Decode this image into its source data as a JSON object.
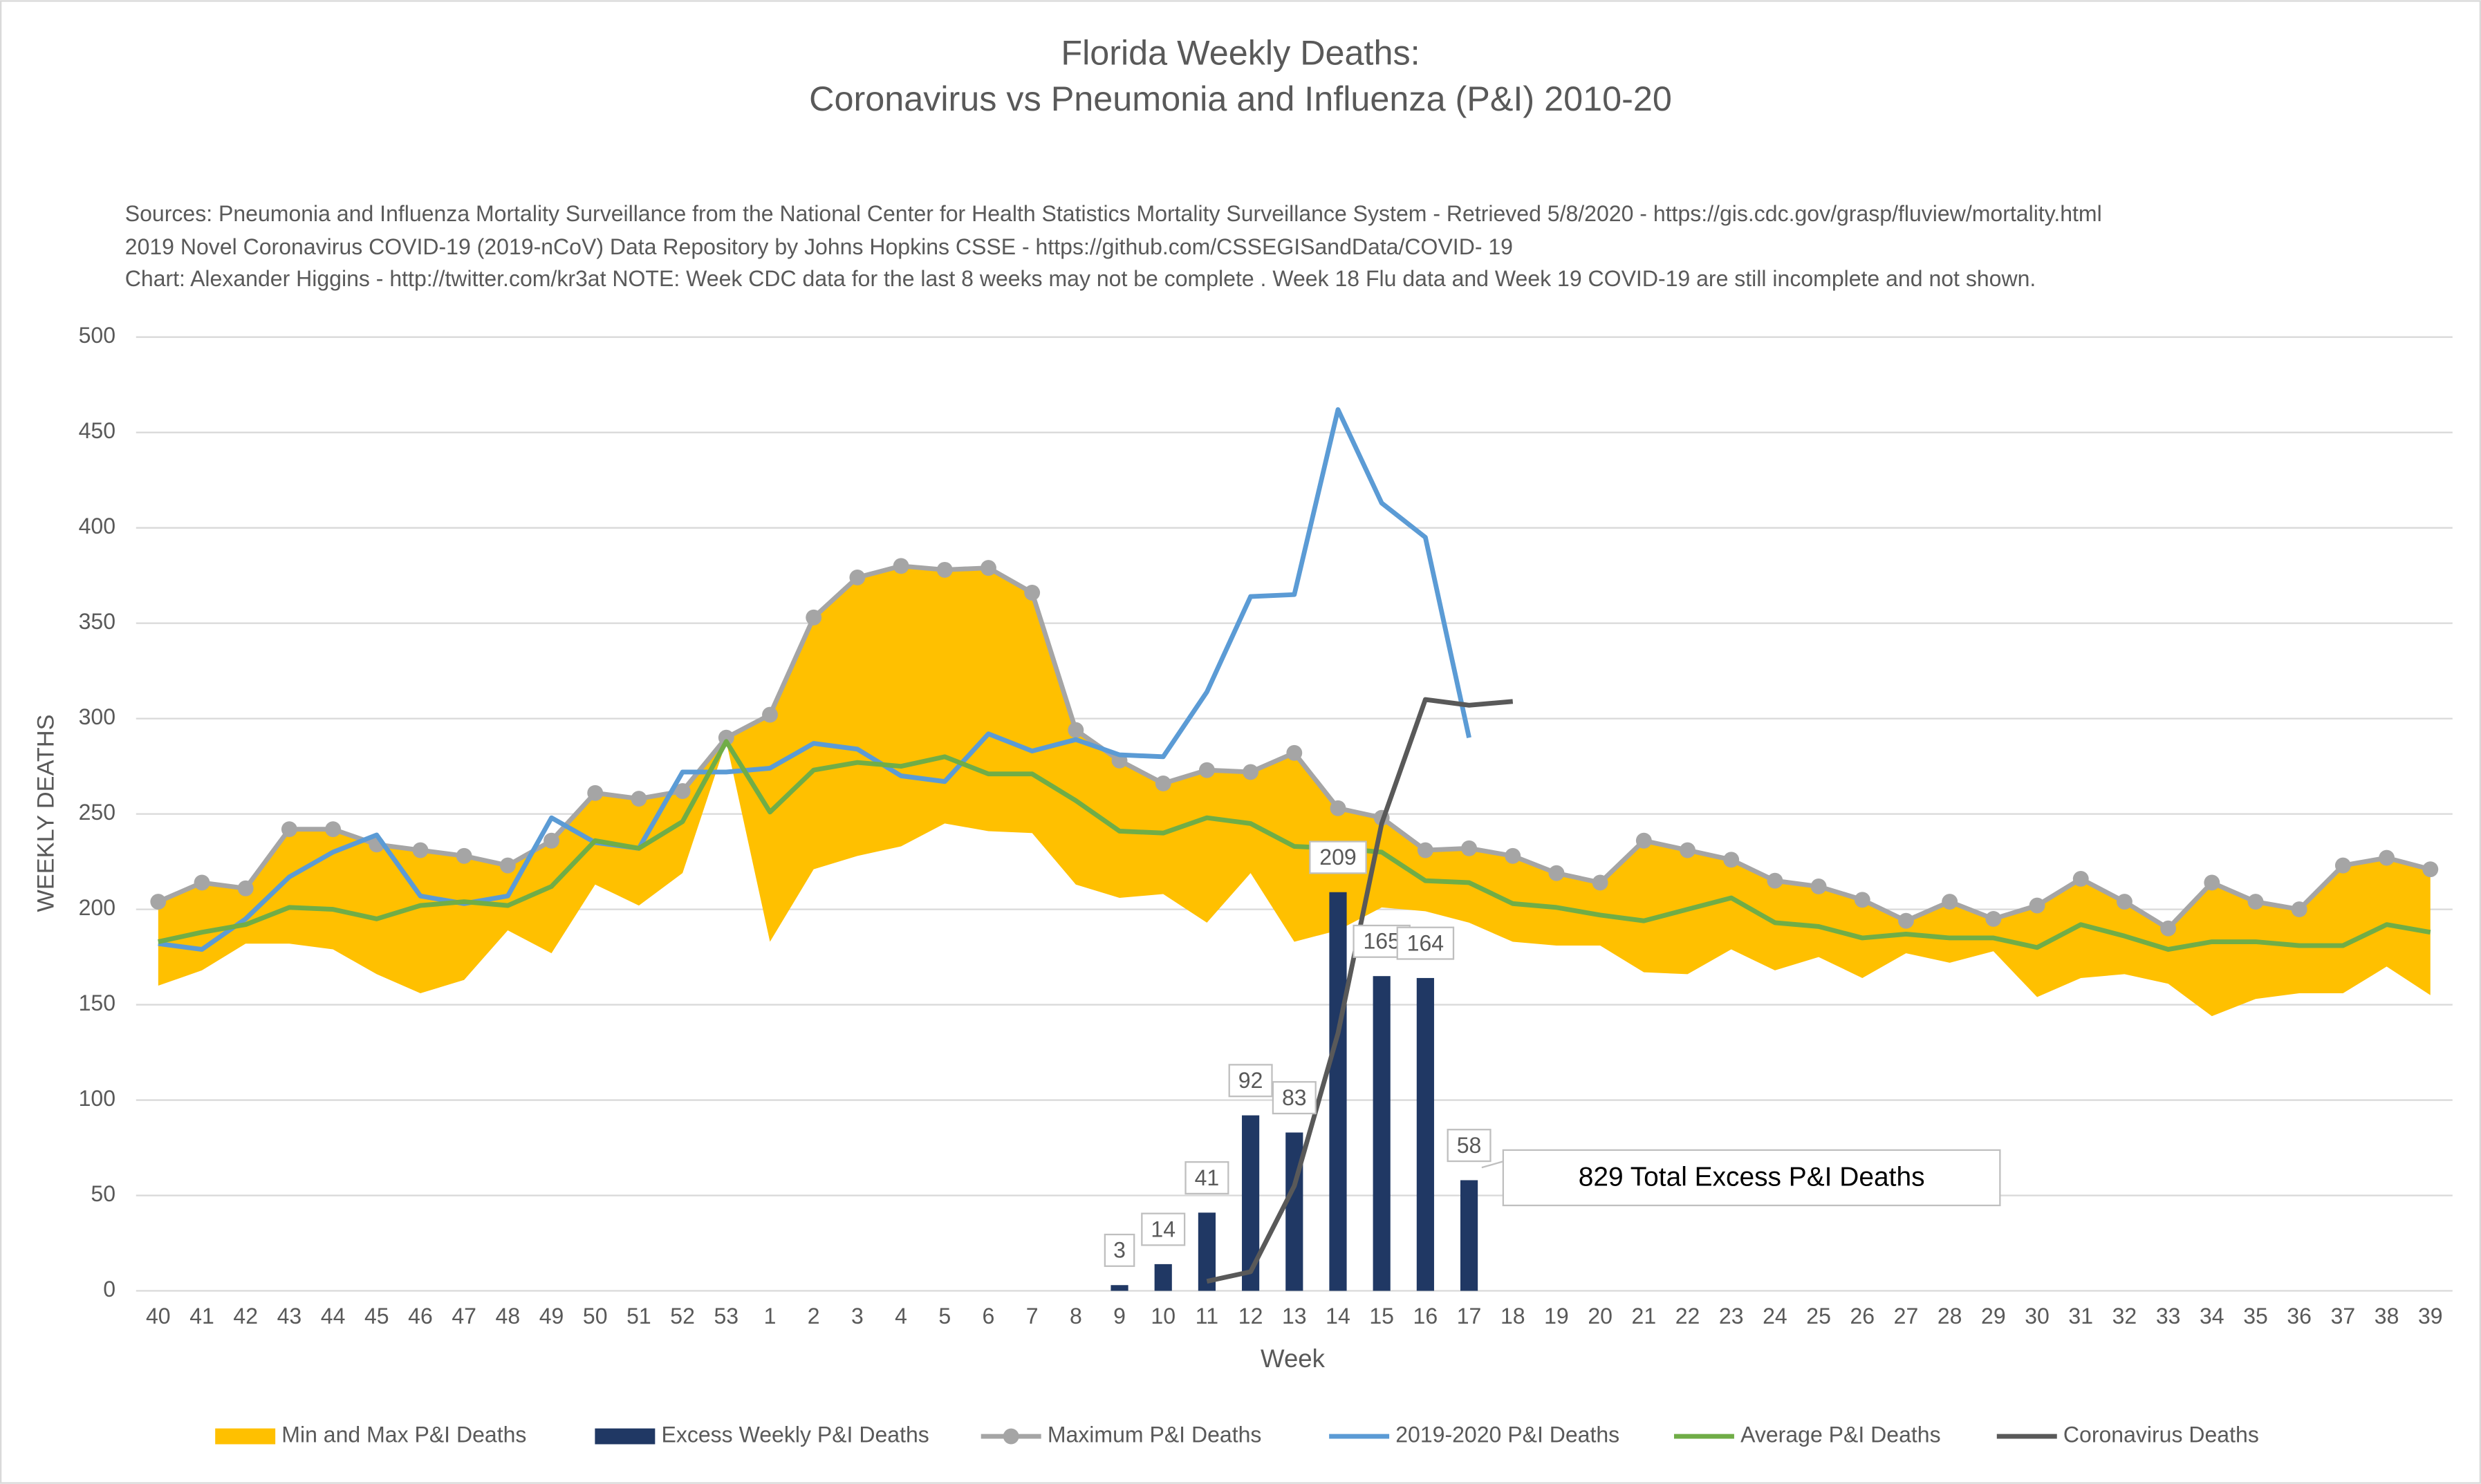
{
  "chart_data": {
    "type": "combo",
    "title": [
      "Florida Weekly Deaths:",
      "Coronavirus vs Pneumonia and Influenza (P&I) 2010-20"
    ],
    "subtitle": [
      "Sources: Pneumonia and Influenza Mortality Surveillance from the National Center for Health Statistics Mortality Surveillance System - Retrieved 5/8/2020 - https://gis.cdc.gov/grasp/fluview/mortality.html",
      "2019 Novel Coronavirus COVID-19 (2019-nCoV) Data Repository by Johns Hopkins CSSE - https://github.com/CSSEGISandData/COVID- 19",
      "Chart: Alexander Higgins - http://twitter.com/kr3at   NOTE: Week CDC data for the last 8 weeks may not be complete . Week 18 Flu data and Week 19 COVID-19 are still incomplete and not shown."
    ],
    "x_label": "Week",
    "y_label": "WEEKLY DEATHS",
    "annotation": "829 Total Excess P&I Deaths",
    "categories": [
      "40",
      "41",
      "42",
      "43",
      "44",
      "45",
      "46",
      "47",
      "48",
      "49",
      "50",
      "51",
      "52",
      "53",
      "1",
      "2",
      "3",
      "4",
      "5",
      "6",
      "7",
      "8",
      "9",
      "10",
      "11",
      "12",
      "13",
      "14",
      "15",
      "16",
      "17",
      "18",
      "19",
      "20",
      "21",
      "22",
      "23",
      "24",
      "25",
      "26",
      "27",
      "28",
      "29",
      "30",
      "31",
      "32",
      "33",
      "34",
      "35",
      "36",
      "37",
      "38",
      "39"
    ],
    "ylim": [
      0,
      500
    ],
    "yticks": [
      0,
      50,
      100,
      150,
      200,
      250,
      300,
      350,
      400,
      450,
      500
    ],
    "grid": true,
    "legend": "bottom",
    "series": [
      {
        "name": "Min and Max P&I Deaths",
        "type": "area",
        "color": "#ffc000",
        "low": [
          160,
          168,
          182,
          182,
          179,
          166,
          156,
          163,
          189,
          177,
          213,
          202,
          219,
          288,
          183,
          221,
          228,
          233,
          245,
          241,
          240,
          213,
          206,
          208,
          193,
          219,
          183,
          189,
          201,
          199,
          193,
          183,
          181,
          181,
          167,
          166,
          179,
          168,
          175,
          164,
          177,
          172,
          178,
          154,
          164,
          166,
          161,
          144,
          153,
          156,
          156,
          170,
          155
        ],
        "high": [
          204,
          214,
          211,
          242,
          242,
          234,
          231,
          228,
          223,
          236,
          261,
          258,
          262,
          290,
          302,
          353,
          374,
          380,
          378,
          379,
          366,
          294,
          278,
          266,
          273,
          272,
          282,
          253,
          248,
          231,
          232,
          228,
          219,
          214,
          236,
          231,
          226,
          215,
          212,
          205,
          194,
          204,
          195,
          202,
          216,
          204,
          190,
          214,
          204,
          200,
          223,
          227,
          221
        ]
      },
      {
        "name": "Excess Weekly P&I Deaths",
        "type": "bar",
        "color": "#203864",
        "values": [
          null,
          null,
          null,
          null,
          null,
          null,
          null,
          null,
          null,
          null,
          null,
          null,
          null,
          null,
          null,
          null,
          null,
          null,
          null,
          null,
          null,
          null,
          3,
          14,
          41,
          92,
          83,
          209,
          165,
          164,
          58,
          null,
          null,
          null,
          null,
          null,
          null,
          null,
          null,
          null,
          null,
          null,
          null,
          null,
          null,
          null,
          null,
          null,
          null,
          null,
          null,
          null,
          null
        ]
      },
      {
        "name": "Maximum P&I Deaths",
        "type": "line",
        "markers": true,
        "color": "#a5a5a5",
        "values": [
          204,
          214,
          211,
          242,
          242,
          234,
          231,
          228,
          223,
          236,
          261,
          258,
          262,
          290,
          302,
          353,
          374,
          380,
          378,
          379,
          366,
          294,
          278,
          266,
          273,
          272,
          282,
          253,
          248,
          231,
          232,
          228,
          219,
          214,
          236,
          231,
          226,
          215,
          212,
          205,
          194,
          204,
          195,
          202,
          216,
          204,
          190,
          214,
          204,
          200,
          223,
          227,
          221
        ]
      },
      {
        "name": "2019-2020 P&I Deaths",
        "type": "line",
        "color": "#5b9bd5",
        "values": [
          182,
          179,
          195,
          217,
          230,
          239,
          207,
          203,
          207,
          248,
          235,
          232,
          272,
          272,
          274,
          287,
          284,
          270,
          267,
          292,
          283,
          289,
          281,
          280,
          314,
          364,
          365,
          462,
          413,
          395,
          290,
          null,
          null,
          null,
          null,
          null,
          null,
          null,
          null,
          null,
          null,
          null,
          null,
          null,
          null,
          null,
          null,
          null,
          null,
          null,
          null,
          null,
          null
        ]
      },
      {
        "name": "Average P&I Deaths",
        "type": "line",
        "color": "#70ad47",
        "values": [
          183,
          188,
          192,
          201,
          200,
          195,
          202,
          204,
          202,
          212,
          236,
          232,
          246,
          288,
          251,
          273,
          277,
          275,
          280,
          271,
          271,
          257,
          241,
          240,
          248,
          245,
          233,
          232,
          230,
          215,
          214,
          203,
          201,
          197,
          194,
          200,
          206,
          193,
          191,
          185,
          187,
          185,
          185,
          180,
          192,
          186,
          179,
          183,
          183,
          181,
          181,
          192,
          188
        ]
      },
      {
        "name": "Coronavirus Deaths",
        "type": "line",
        "color": "#595959",
        "values": [
          null,
          null,
          null,
          null,
          null,
          null,
          null,
          null,
          null,
          null,
          null,
          null,
          null,
          null,
          null,
          null,
          null,
          null,
          null,
          null,
          null,
          null,
          null,
          null,
          5,
          10,
          55,
          135,
          245,
          310,
          307,
          309,
          null,
          null,
          null,
          null,
          null,
          null,
          null,
          null,
          null,
          null,
          null,
          null,
          null,
          null,
          null,
          null,
          null,
          null,
          null,
          null,
          null
        ]
      }
    ]
  }
}
